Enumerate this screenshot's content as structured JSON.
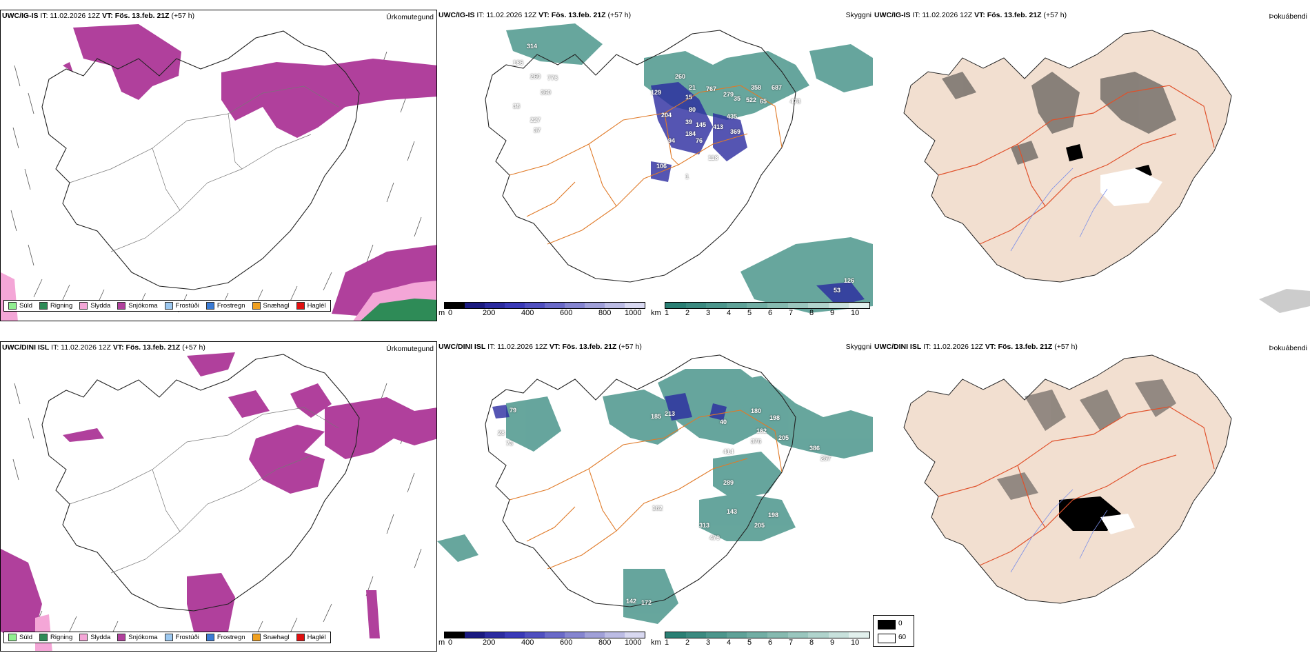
{
  "rows": [
    {
      "model": "UWC/IG-IS",
      "it_label": "IT: 11.02.2026 12Z",
      "vt_label": "VT: Fös. 13.feb. 21Z",
      "lead": "(+57 h)",
      "cloud_labels": [
        "314",
        "186",
        "260",
        "776",
        "360",
        "38",
        "227",
        "37",
        "129",
        "260",
        "21",
        "767",
        "279",
        "358",
        "687",
        "204",
        "15",
        "80",
        "435",
        "35",
        "522",
        "65",
        "478",
        "39",
        "145",
        "413",
        "369",
        "184",
        "76",
        "94",
        "118",
        "106",
        "1"
      ],
      "sea_labels": [
        "126",
        "53"
      ]
    },
    {
      "model": "UWC/DINI ISL",
      "it_label": "IT: 11.02.2026 12Z",
      "vt_label": "VT: Fös. 13.feb. 21Z",
      "lead": "(+57 h)",
      "cloud_labels": [
        "79",
        "185",
        "213",
        "180",
        "198",
        "28",
        "73",
        "162",
        "40",
        "205",
        "376",
        "386",
        "257",
        "414",
        "289",
        "162",
        "143",
        "198",
        "313",
        "479",
        "205"
      ],
      "sea_labels": [
        "142",
        "172"
      ]
    }
  ],
  "titles": {
    "precip": "Úrkomutegund",
    "visibility": "Skyggni",
    "fog": "Þokuábendi"
  },
  "precip_legend": [
    {
      "label": "Súld",
      "color": "#90ee90"
    },
    {
      "label": "Rigning",
      "color": "#2e8b57"
    },
    {
      "label": "Slydda",
      "color": "#f4a6d7"
    },
    {
      "label": "Snjókoma",
      "color": "#b0409c"
    },
    {
      "label": "Frostúði",
      "color": "#9cc8f0"
    },
    {
      "label": "Frostregn",
      "color": "#3a7bd5"
    },
    {
      "label": "Snæhagl",
      "color": "#f0a020"
    },
    {
      "label": "Haglél",
      "color": "#e01010"
    }
  ],
  "cloud_bar": {
    "unit": "m",
    "ticks": [
      "0",
      "200",
      "400",
      "600",
      "800",
      "1000"
    ],
    "colors": [
      "#000000",
      "#1a1a80",
      "#2b2ba0",
      "#3a3ab8",
      "#5050c0",
      "#6a6ac8",
      "#8585d0",
      "#a0a0d8",
      "#bcbce4",
      "#d8d8f0"
    ]
  },
  "vis_bar": {
    "unit": "km",
    "ticks": [
      "1",
      "2",
      "3",
      "4",
      "5",
      "6",
      "7",
      "8",
      "9",
      "10"
    ],
    "colors": [
      "#2a7f74",
      "#3b8a80",
      "#4c968c",
      "#5fa298",
      "#72aea4",
      "#86bab0",
      "#9ac6be",
      "#b0d3cc",
      "#c8e1dc",
      "#e2f0ed"
    ]
  },
  "fog_legend": [
    {
      "label": "0",
      "color": "#000000"
    },
    {
      "label": "60",
      "color": "#ffffff"
    }
  ],
  "colors": {
    "snow": "#b0409c",
    "sleet": "#f4a6d7",
    "rain": "#2e8b57",
    "visibility": "#4c968c",
    "low_cloud": "#2b2ba0",
    "road": "#e07a28",
    "fog_land": "#f2dfd0",
    "fog_road": "#e0502a"
  }
}
